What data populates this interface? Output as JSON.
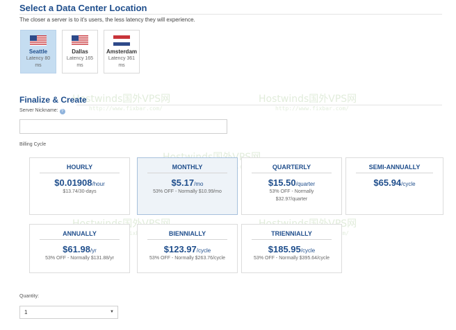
{
  "datacenter": {
    "title": "Select a Data Center Location",
    "subtitle": "The closer a server is to it's users, the less latency they will experience.",
    "locations": [
      {
        "city": "Seattle",
        "latency": "Latency 80 ms",
        "flag": "us-flag",
        "selected": true
      },
      {
        "city": "Dallas",
        "latency": "Latency 165 ms",
        "flag": "us-flag",
        "selected": false
      },
      {
        "city": "Amsterdam",
        "latency": "Latency 361 ms",
        "flag": "nl-flag",
        "selected": false
      }
    ]
  },
  "finalize": {
    "title": "Finalize & Create",
    "nickname_label": "Server Nickname:",
    "nickname_value": "",
    "billing_label": "Billing Cycle"
  },
  "plans": [
    {
      "name": "HOURLY",
      "price": "$0.01908",
      "unit": "/hour",
      "note1": "$13.74/30-days",
      "note2": "",
      "selected": false
    },
    {
      "name": "MONTHLY",
      "price": "$5.17",
      "unit": "/mo",
      "note1": "53% OFF - Normally $10.99/mo",
      "note2": "",
      "selected": true
    },
    {
      "name": "QUARTERLY",
      "price": "$15.50",
      "unit": "/quarter",
      "note1": "53% OFF - Normally",
      "note2": "$32.97/quarter",
      "selected": false
    },
    {
      "name": "SEMI-ANNUALLY",
      "price": "$65.94",
      "unit": "/cycle",
      "note1": "",
      "note2": "",
      "selected": false
    },
    {
      "name": "ANNUALLY",
      "price": "$61.98",
      "unit": "/yr",
      "note1": "53% OFF - Normally $131.88/yr",
      "note2": "",
      "selected": false
    },
    {
      "name": "BIENNIALLY",
      "price": "$123.97",
      "unit": "/cycle",
      "note1": "53% OFF - Normally $263.76/cycle",
      "note2": "",
      "selected": false
    },
    {
      "name": "TRIENNIALLY",
      "price": "$185.95",
      "unit": "/cycle",
      "note1": "53% OFF - Normally $395.64/cycle",
      "note2": "",
      "selected": false
    }
  ],
  "quantity": {
    "label": "Quantity:",
    "value": "1"
  },
  "watermark": {
    "text": "Hostwinds国外VPS网",
    "url": "http://www.fixbar.com/"
  },
  "colors": {
    "accent": "#1f4e8c",
    "selected_location": "#c5ddf1",
    "selected_plan": "#eef3f8"
  }
}
